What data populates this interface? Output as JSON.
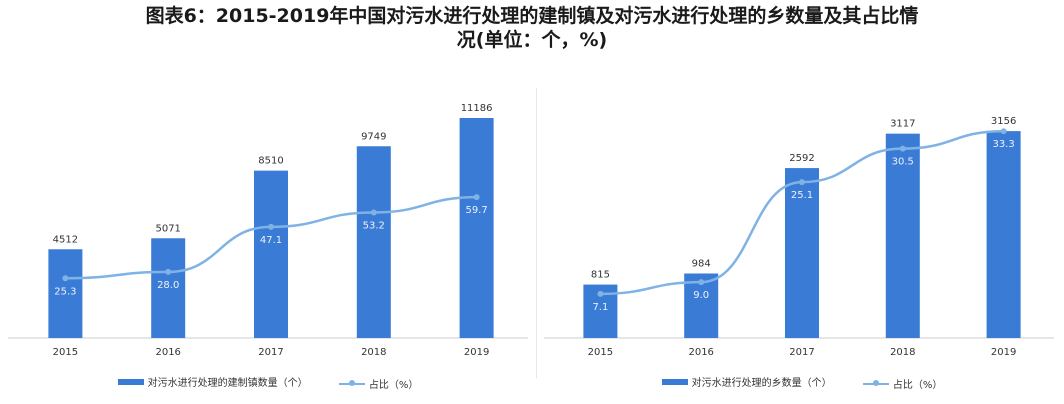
{
  "title": {
    "line1": "图表6：2015-2019年中国对污水进行处理的建制镇及对污水进行处理的乡数量及其占比情",
    "line2": "况(单位：个，%)"
  },
  "colors": {
    "bar": "#3a7bd5",
    "line": "#7fb2e5",
    "axis": "#cccccc"
  },
  "chart_data": [
    {
      "type": "bar",
      "categories": [
        "2015",
        "2016",
        "2017",
        "2018",
        "2019"
      ],
      "series": [
        {
          "name": "对污水进行处理的建制镇数量（个）",
          "kind": "bar",
          "values": [
            4512,
            5071,
            8510,
            9749,
            11186
          ]
        },
        {
          "name": "占比（%）",
          "kind": "line",
          "values": [
            25.3,
            28.0,
            47.1,
            53.2,
            59.7
          ]
        }
      ],
      "value_labels": [
        "4512",
        "5071",
        "8510",
        "9749",
        "11186"
      ],
      "line_labels": [
        "25.3",
        "28.0",
        "47.1",
        "53.2",
        "59.7"
      ],
      "ylim": [
        0,
        12000
      ],
      "ylim_secondary": [
        0,
        100
      ],
      "legend": "bottom"
    },
    {
      "type": "bar",
      "categories": [
        "2015",
        "2016",
        "2017",
        "2018",
        "2019"
      ],
      "series": [
        {
          "name": "对污水进行处理的乡数量（个）",
          "kind": "bar",
          "values": [
            815,
            984,
            2592,
            3117,
            3156
          ]
        },
        {
          "name": "占比（%）",
          "kind": "line",
          "values": [
            7.1,
            9.0,
            25.1,
            30.5,
            33.3
          ]
        }
      ],
      "value_labels": [
        "815",
        "984",
        "2592",
        "3117",
        "3156"
      ],
      "line_labels": [
        "7.1",
        "9.0",
        "25.1",
        "30.5",
        "33.3"
      ],
      "ylim": [
        0,
        3600
      ],
      "ylim_secondary": [
        0,
        38
      ],
      "legend": "bottom"
    }
  ]
}
